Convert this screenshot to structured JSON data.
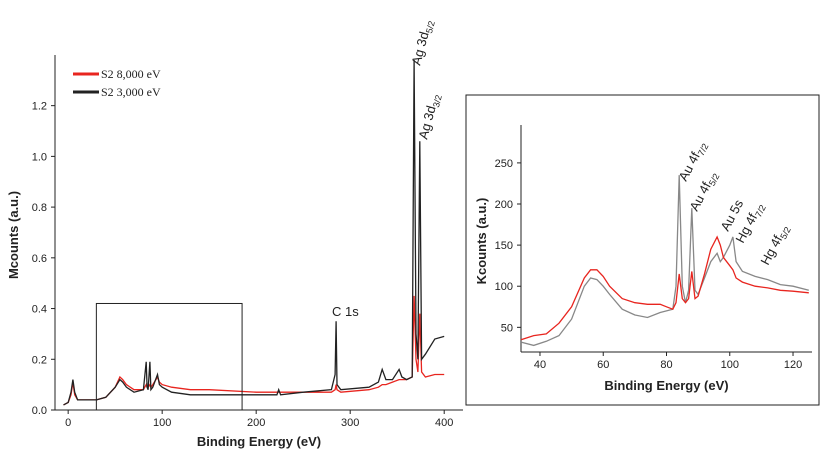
{
  "chart_data": [
    {
      "type": "line",
      "x_label": "Binding Energy (eV)",
      "y_label": "Mcounts (a.u.)",
      "xlim": [
        -14,
        420
      ],
      "ylim": [
        0,
        1.38
      ],
      "xticks": [
        0,
        100,
        200,
        300,
        400
      ],
      "yticks": [
        {
          "value": 0,
          "label": "0.0"
        },
        0.2,
        0.4,
        0.6,
        0.8,
        {
          "value": 1,
          "label": "1.0"
        },
        1.2
      ],
      "legend": "upper left",
      "x": [
        -5,
        0,
        3,
        5,
        7,
        10,
        20,
        30,
        40,
        50,
        55,
        58,
        62,
        70,
        80,
        83,
        84,
        85,
        87,
        88,
        90,
        95,
        97,
        100,
        110,
        130,
        150,
        200,
        222,
        224,
        226,
        250,
        280,
        284,
        285,
        286,
        290,
        320,
        330,
        334,
        338,
        345,
        352,
        355,
        360,
        366,
        368,
        370,
        372,
        374,
        376,
        380,
        390,
        400
      ],
      "series": [
        {
          "name": "S2 8,000 eV",
          "color": "#e8251f",
          "values": [
            0.02,
            0.03,
            0.06,
            0.11,
            0.06,
            0.04,
            0.04,
            0.04,
            0.05,
            0.09,
            0.13,
            0.12,
            0.1,
            0.08,
            0.08,
            0.1,
            0.09,
            0.09,
            0.1,
            0.09,
            0.1,
            0.13,
            0.11,
            0.1,
            0.09,
            0.08,
            0.08,
            0.07,
            0.07,
            0.07,
            0.07,
            0.07,
            0.07,
            0.08,
            0.1,
            0.08,
            0.07,
            0.08,
            0.09,
            0.1,
            0.1,
            0.11,
            0.12,
            0.12,
            0.12,
            0.13,
            0.45,
            0.2,
            0.15,
            0.38,
            0.15,
            0.13,
            0.14,
            0.14
          ]
        },
        {
          "name": "S2 3,000 eV",
          "color": "#222222",
          "values": [
            0.02,
            0.03,
            0.07,
            0.12,
            0.07,
            0.04,
            0.04,
            0.04,
            0.05,
            0.09,
            0.12,
            0.11,
            0.09,
            0.07,
            0.08,
            0.19,
            0.09,
            0.08,
            0.19,
            0.08,
            0.09,
            0.14,
            0.1,
            0.09,
            0.07,
            0.06,
            0.06,
            0.06,
            0.06,
            0.08,
            0.06,
            0.07,
            0.08,
            0.14,
            0.35,
            0.1,
            0.08,
            0.09,
            0.11,
            0.16,
            0.12,
            0.12,
            0.16,
            0.13,
            0.12,
            0.13,
            1.38,
            0.3,
            0.2,
            1.06,
            0.2,
            0.22,
            0.28,
            0.29
          ]
        }
      ],
      "zoom_box": {
        "x": [
          30,
          185
        ],
        "y": [
          0,
          0.42
        ]
      },
      "annotations": [
        {
          "text": "Ag 3d",
          "sub": "5/2"
        },
        {
          "text": "Ag 3d",
          "sub": "3/2"
        },
        {
          "text": "C 1s"
        }
      ]
    },
    {
      "type": "line",
      "x_label": "Binding Energy (eV)",
      "y_label": "Kcounts (a.u.)",
      "xlim": [
        34,
        126
      ],
      "ylim": [
        20,
        290
      ],
      "xticks": [
        40,
        60,
        80,
        100,
        120
      ],
      "yticks": [
        50,
        100,
        150,
        200,
        250
      ],
      "x": [
        34,
        38,
        42,
        46,
        50,
        54,
        56,
        58,
        60,
        62,
        66,
        70,
        74,
        78,
        80,
        82,
        83,
        84,
        85,
        86,
        87,
        88,
        89,
        90,
        92,
        94,
        96,
        97,
        98,
        100,
        101,
        102,
        104,
        108,
        112,
        116,
        120,
        125
      ],
      "series": [
        {
          "color": "#888888",
          "values": [
            32,
            28,
            33,
            40,
            60,
            100,
            110,
            108,
            100,
            90,
            72,
            65,
            62,
            68,
            70,
            72,
            100,
            235,
            100,
            80,
            95,
            195,
            95,
            90,
            110,
            130,
            140,
            130,
            135,
            150,
            160,
            130,
            118,
            112,
            108,
            102,
            100,
            95
          ]
        },
        {
          "color": "#e8251f",
          "values": [
            35,
            40,
            42,
            55,
            75,
            110,
            120,
            120,
            112,
            100,
            85,
            80,
            78,
            78,
            75,
            72,
            80,
            115,
            85,
            80,
            85,
            118,
            85,
            88,
            115,
            145,
            160,
            150,
            135,
            125,
            120,
            110,
            105,
            100,
            98,
            95,
            94,
            92
          ]
        }
      ],
      "annotations": [
        {
          "text": "Au 4f",
          "sub": "7/2"
        },
        {
          "text": "Au 4f",
          "sub": "5/2"
        },
        {
          "text": "Au 5s"
        },
        {
          "text": "Hg 4f",
          "sub": "7/2"
        },
        {
          "text": "Hg 4f",
          "sub": "5/2"
        }
      ]
    }
  ]
}
